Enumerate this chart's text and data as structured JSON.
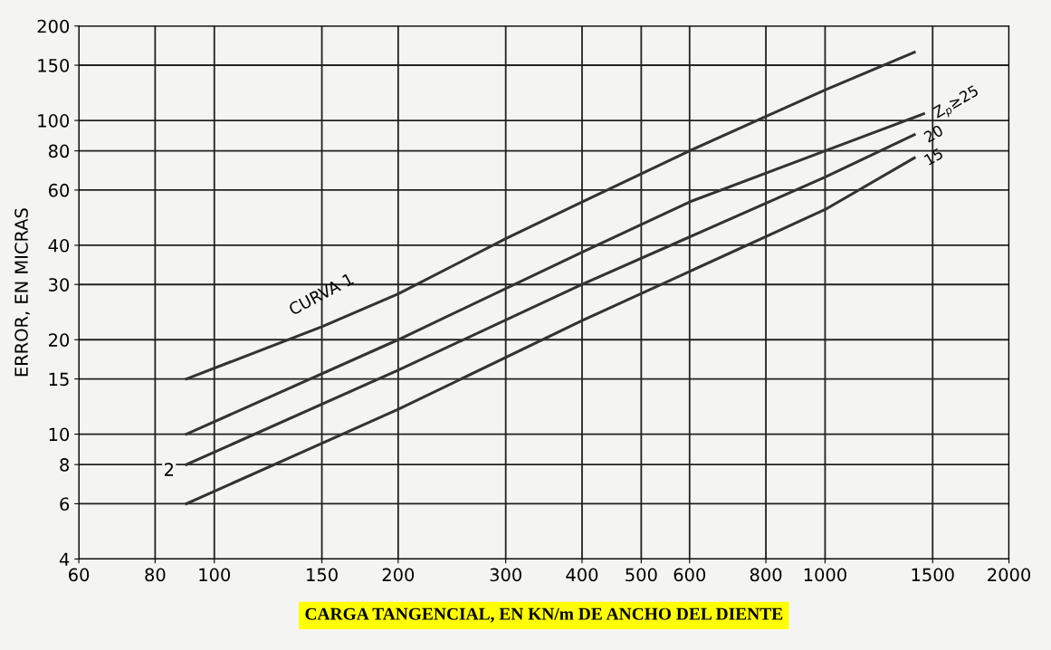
{
  "chart_data": {
    "type": "line",
    "xlabel": "CARGA TANGENCIAL, EN KN/m DE ANCHO DEL DIENTE",
    "ylabel": "ERROR, EN MICRAS",
    "log": "xy",
    "xlim": [
      60,
      2000
    ],
    "ylim": [
      4,
      200
    ],
    "xticks": [
      60,
      80,
      100,
      150,
      200,
      300,
      400,
      500,
      600,
      800,
      1000,
      1500,
      2000
    ],
    "yticks": [
      4,
      6,
      8,
      10,
      15,
      20,
      30,
      40,
      60,
      80,
      100,
      150,
      200
    ],
    "grid": true,
    "legend": false,
    "marker": "none",
    "line_style": "solid",
    "series": [
      {
        "name": "CURVA 1",
        "color": "#333333",
        "x": [
          90,
          150,
          200,
          300,
          400,
          600,
          800,
          1000,
          1400
        ],
        "values": [
          15,
          22,
          28,
          42,
          55,
          80,
          103,
          125,
          165
        ]
      },
      {
        "name": "Z$_{p}$≥25",
        "color": "#333333",
        "x": [
          90,
          200,
          400,
          600,
          1000,
          1450
        ],
        "values": [
          10,
          20,
          38,
          55,
          80,
          105
        ]
      },
      {
        "name": "20",
        "color": "#333333",
        "x": [
          90,
          200,
          400,
          1000,
          1400
        ],
        "values": [
          8,
          16,
          30,
          66,
          90
        ]
      },
      {
        "name": "15",
        "color": "#333333",
        "x": [
          90,
          200,
          400,
          1000,
          1400
        ],
        "values": [
          6,
          12,
          23,
          52,
          76
        ]
      }
    ],
    "annotations": [
      "2"
    ]
  }
}
